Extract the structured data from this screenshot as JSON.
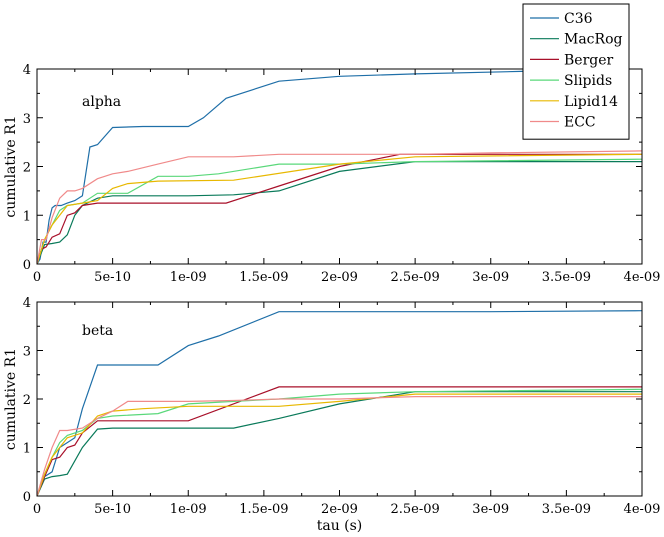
{
  "chart_data": [
    {
      "type": "line",
      "annotation": "alpha",
      "xlabel": "",
      "ylabel": "cumulative R1",
      "xlim": [
        0,
        4e-09
      ],
      "ylim": [
        0,
        4
      ],
      "x_ticks": [
        "0",
        "5e-10",
        "1e-09",
        "1.5e-09",
        "2e-09",
        "2.5e-09",
        "3e-09",
        "3.5e-09",
        "4e-09"
      ],
      "y_ticks": [
        "0",
        "1",
        "2",
        "3",
        "4"
      ],
      "grid": false,
      "series": [
        {
          "name": "C36",
          "color": "#1f6fa8",
          "x": [
            0,
            2e-11,
            4e-11,
            6e-11,
            8e-11,
            1e-10,
            1.2e-10,
            1.6e-10,
            2e-10,
            2.5e-10,
            3e-10,
            3.5e-10,
            4e-10,
            5e-10,
            7e-10,
            1e-09,
            1.1e-09,
            1.25e-09,
            1.6e-09,
            2e-09,
            2.5e-09,
            3.2e-09,
            3.6e-09,
            4e-09
          ],
          "y": [
            0,
            0.1,
            0.45,
            0.45,
            0.9,
            1.15,
            1.2,
            1.2,
            1.25,
            1.3,
            1.4,
            2.4,
            2.45,
            2.8,
            2.82,
            2.82,
            3.0,
            3.4,
            3.75,
            3.85,
            3.9,
            3.95,
            4.0,
            4.05
          ]
        },
        {
          "name": "MacRog",
          "color": "#0a7a5a",
          "x": [
            0,
            5e-11,
            1e-10,
            1.5e-10,
            2e-10,
            2.5e-10,
            3e-10,
            4e-10,
            5e-10,
            1e-09,
            1.3e-09,
            1.6e-09,
            2e-09,
            2.5e-09,
            3e-09,
            4e-09
          ],
          "y": [
            0,
            0.4,
            0.42,
            0.45,
            0.6,
            1.0,
            1.2,
            1.35,
            1.4,
            1.4,
            1.42,
            1.5,
            1.9,
            2.1,
            2.1,
            2.1
          ]
        },
        {
          "name": "Berger",
          "color": "#a8102a",
          "x": [
            0,
            3e-11,
            6e-11,
            1e-10,
            1.5e-10,
            2e-10,
            2.5e-10,
            3e-10,
            4e-10,
            5e-10,
            1e-09,
            1.25e-09,
            1.6e-09,
            2e-09,
            2.4e-09,
            4e-09
          ],
          "y": [
            0,
            0.3,
            0.35,
            0.55,
            0.62,
            1.0,
            1.05,
            1.2,
            1.25,
            1.25,
            1.25,
            1.25,
            1.6,
            2.0,
            2.25,
            2.25
          ]
        },
        {
          "name": "Slipids",
          "color": "#5ad87a",
          "x": [
            0,
            5e-11,
            1e-10,
            1.5e-10,
            2e-10,
            3e-10,
            4e-10,
            5e-10,
            6e-10,
            8e-10,
            1e-09,
            1.2e-09,
            1.6e-09,
            2e-09,
            2.5e-09,
            4e-09
          ],
          "y": [
            0,
            0.5,
            0.8,
            1.1,
            1.2,
            1.25,
            1.45,
            1.45,
            1.45,
            1.8,
            1.8,
            1.85,
            2.05,
            2.05,
            2.1,
            2.15
          ]
        },
        {
          "name": "Lipid14",
          "color": "#e8b800",
          "x": [
            0,
            5e-11,
            1e-10,
            1.5e-10,
            2e-10,
            3e-10,
            4e-10,
            5e-10,
            6e-10,
            8e-10,
            1.3e-09,
            2e-09,
            2.5e-09,
            4e-09
          ],
          "y": [
            0,
            0.5,
            0.8,
            1.0,
            1.2,
            1.25,
            1.3,
            1.55,
            1.65,
            1.7,
            1.72,
            2.05,
            2.2,
            2.25
          ]
        },
        {
          "name": "ECC",
          "color": "#f08a8a",
          "x": [
            0,
            3e-11,
            6e-11,
            1e-10,
            1.5e-10,
            2e-10,
            2.5e-10,
            3e-10,
            4e-10,
            5e-10,
            6e-10,
            8e-10,
            1e-09,
            1.3e-09,
            1.6e-09,
            2e-09,
            2.5e-09,
            3e-09,
            4e-09
          ],
          "y": [
            0,
            0.5,
            0.5,
            0.95,
            1.35,
            1.5,
            1.5,
            1.55,
            1.75,
            1.85,
            1.9,
            2.05,
            2.2,
            2.2,
            2.25,
            2.25,
            2.25,
            2.28,
            2.32
          ]
        }
      ]
    },
    {
      "type": "line",
      "annotation": "beta",
      "xlabel": "tau (s)",
      "ylabel": "cumulative R1",
      "xlim": [
        0,
        4e-09
      ],
      "ylim": [
        0,
        4
      ],
      "x_ticks": [
        "0",
        "5e-10",
        "1e-09",
        "1.5e-09",
        "2e-09",
        "2.5e-09",
        "3e-09",
        "3.5e-09",
        "4e-09"
      ],
      "y_ticks": [
        "0",
        "1",
        "2",
        "3",
        "4"
      ],
      "grid": false,
      "series": [
        {
          "name": "C36",
          "color": "#1f6fa8",
          "x": [
            0,
            5e-11,
            1e-10,
            1.5e-10,
            2e-10,
            2.5e-10,
            3e-10,
            4e-10,
            5e-10,
            8e-10,
            1e-09,
            1.2e-09,
            1.6e-09,
            2e-09,
            3e-09,
            4e-09
          ],
          "y": [
            0,
            0.4,
            0.5,
            1.0,
            1.1,
            1.2,
            1.8,
            2.7,
            2.7,
            2.7,
            3.1,
            3.3,
            3.8,
            3.8,
            3.8,
            3.82
          ]
        },
        {
          "name": "MacRog",
          "color": "#0a7a5a",
          "x": [
            0,
            5e-11,
            1e-10,
            1.5e-10,
            2e-10,
            3e-10,
            4e-10,
            5e-10,
            1e-09,
            1.3e-09,
            1.6e-09,
            2e-09,
            2.5e-09,
            4e-09
          ],
          "y": [
            0,
            0.35,
            0.4,
            0.42,
            0.45,
            1.0,
            1.38,
            1.4,
            1.4,
            1.4,
            1.6,
            1.9,
            2.15,
            2.15
          ]
        },
        {
          "name": "Berger",
          "color": "#a8102a",
          "x": [
            0,
            5e-11,
            1e-10,
            1.5e-10,
            2e-10,
            2.5e-10,
            3e-10,
            4e-10,
            5e-10,
            1e-09,
            1.6e-09,
            2e-09,
            4e-09
          ],
          "y": [
            0,
            0.4,
            0.75,
            0.8,
            1.0,
            1.05,
            1.3,
            1.55,
            1.55,
            1.55,
            2.25,
            2.25,
            2.25
          ]
        },
        {
          "name": "Slipids",
          "color": "#5ad87a",
          "x": [
            0,
            5e-11,
            1e-10,
            1.5e-10,
            2e-10,
            3e-10,
            4e-10,
            5e-10,
            8e-10,
            1e-09,
            1.3e-09,
            1.6e-09,
            2e-09,
            2.5e-09,
            4e-09
          ],
          "y": [
            0,
            0.45,
            0.8,
            1.1,
            1.25,
            1.35,
            1.6,
            1.65,
            1.7,
            1.9,
            1.95,
            2.0,
            2.1,
            2.15,
            2.2
          ]
        },
        {
          "name": "Lipid14",
          "color": "#e8b800",
          "x": [
            0,
            5e-11,
            1e-10,
            1.5e-10,
            2e-10,
            3e-10,
            4e-10,
            5e-10,
            7e-10,
            1e-09,
            1.6e-09,
            2e-09,
            2.5e-09,
            4e-09
          ],
          "y": [
            0,
            0.45,
            0.8,
            1.0,
            1.2,
            1.3,
            1.65,
            1.75,
            1.8,
            1.85,
            1.85,
            1.95,
            2.1,
            2.1
          ]
        },
        {
          "name": "ECC",
          "color": "#f08a8a",
          "x": [
            0,
            5e-11,
            1e-10,
            1.5e-10,
            2e-10,
            3e-10,
            4e-10,
            5e-10,
            6e-10,
            8e-10,
            1e-09,
            1.3e-09,
            1.6e-09,
            2e-09,
            2.5e-09,
            4e-09
          ],
          "y": [
            0,
            0.55,
            1.0,
            1.35,
            1.35,
            1.4,
            1.6,
            1.75,
            1.95,
            1.95,
            1.95,
            1.97,
            2.0,
            2.0,
            2.05,
            2.05
          ]
        }
      ]
    }
  ]
}
